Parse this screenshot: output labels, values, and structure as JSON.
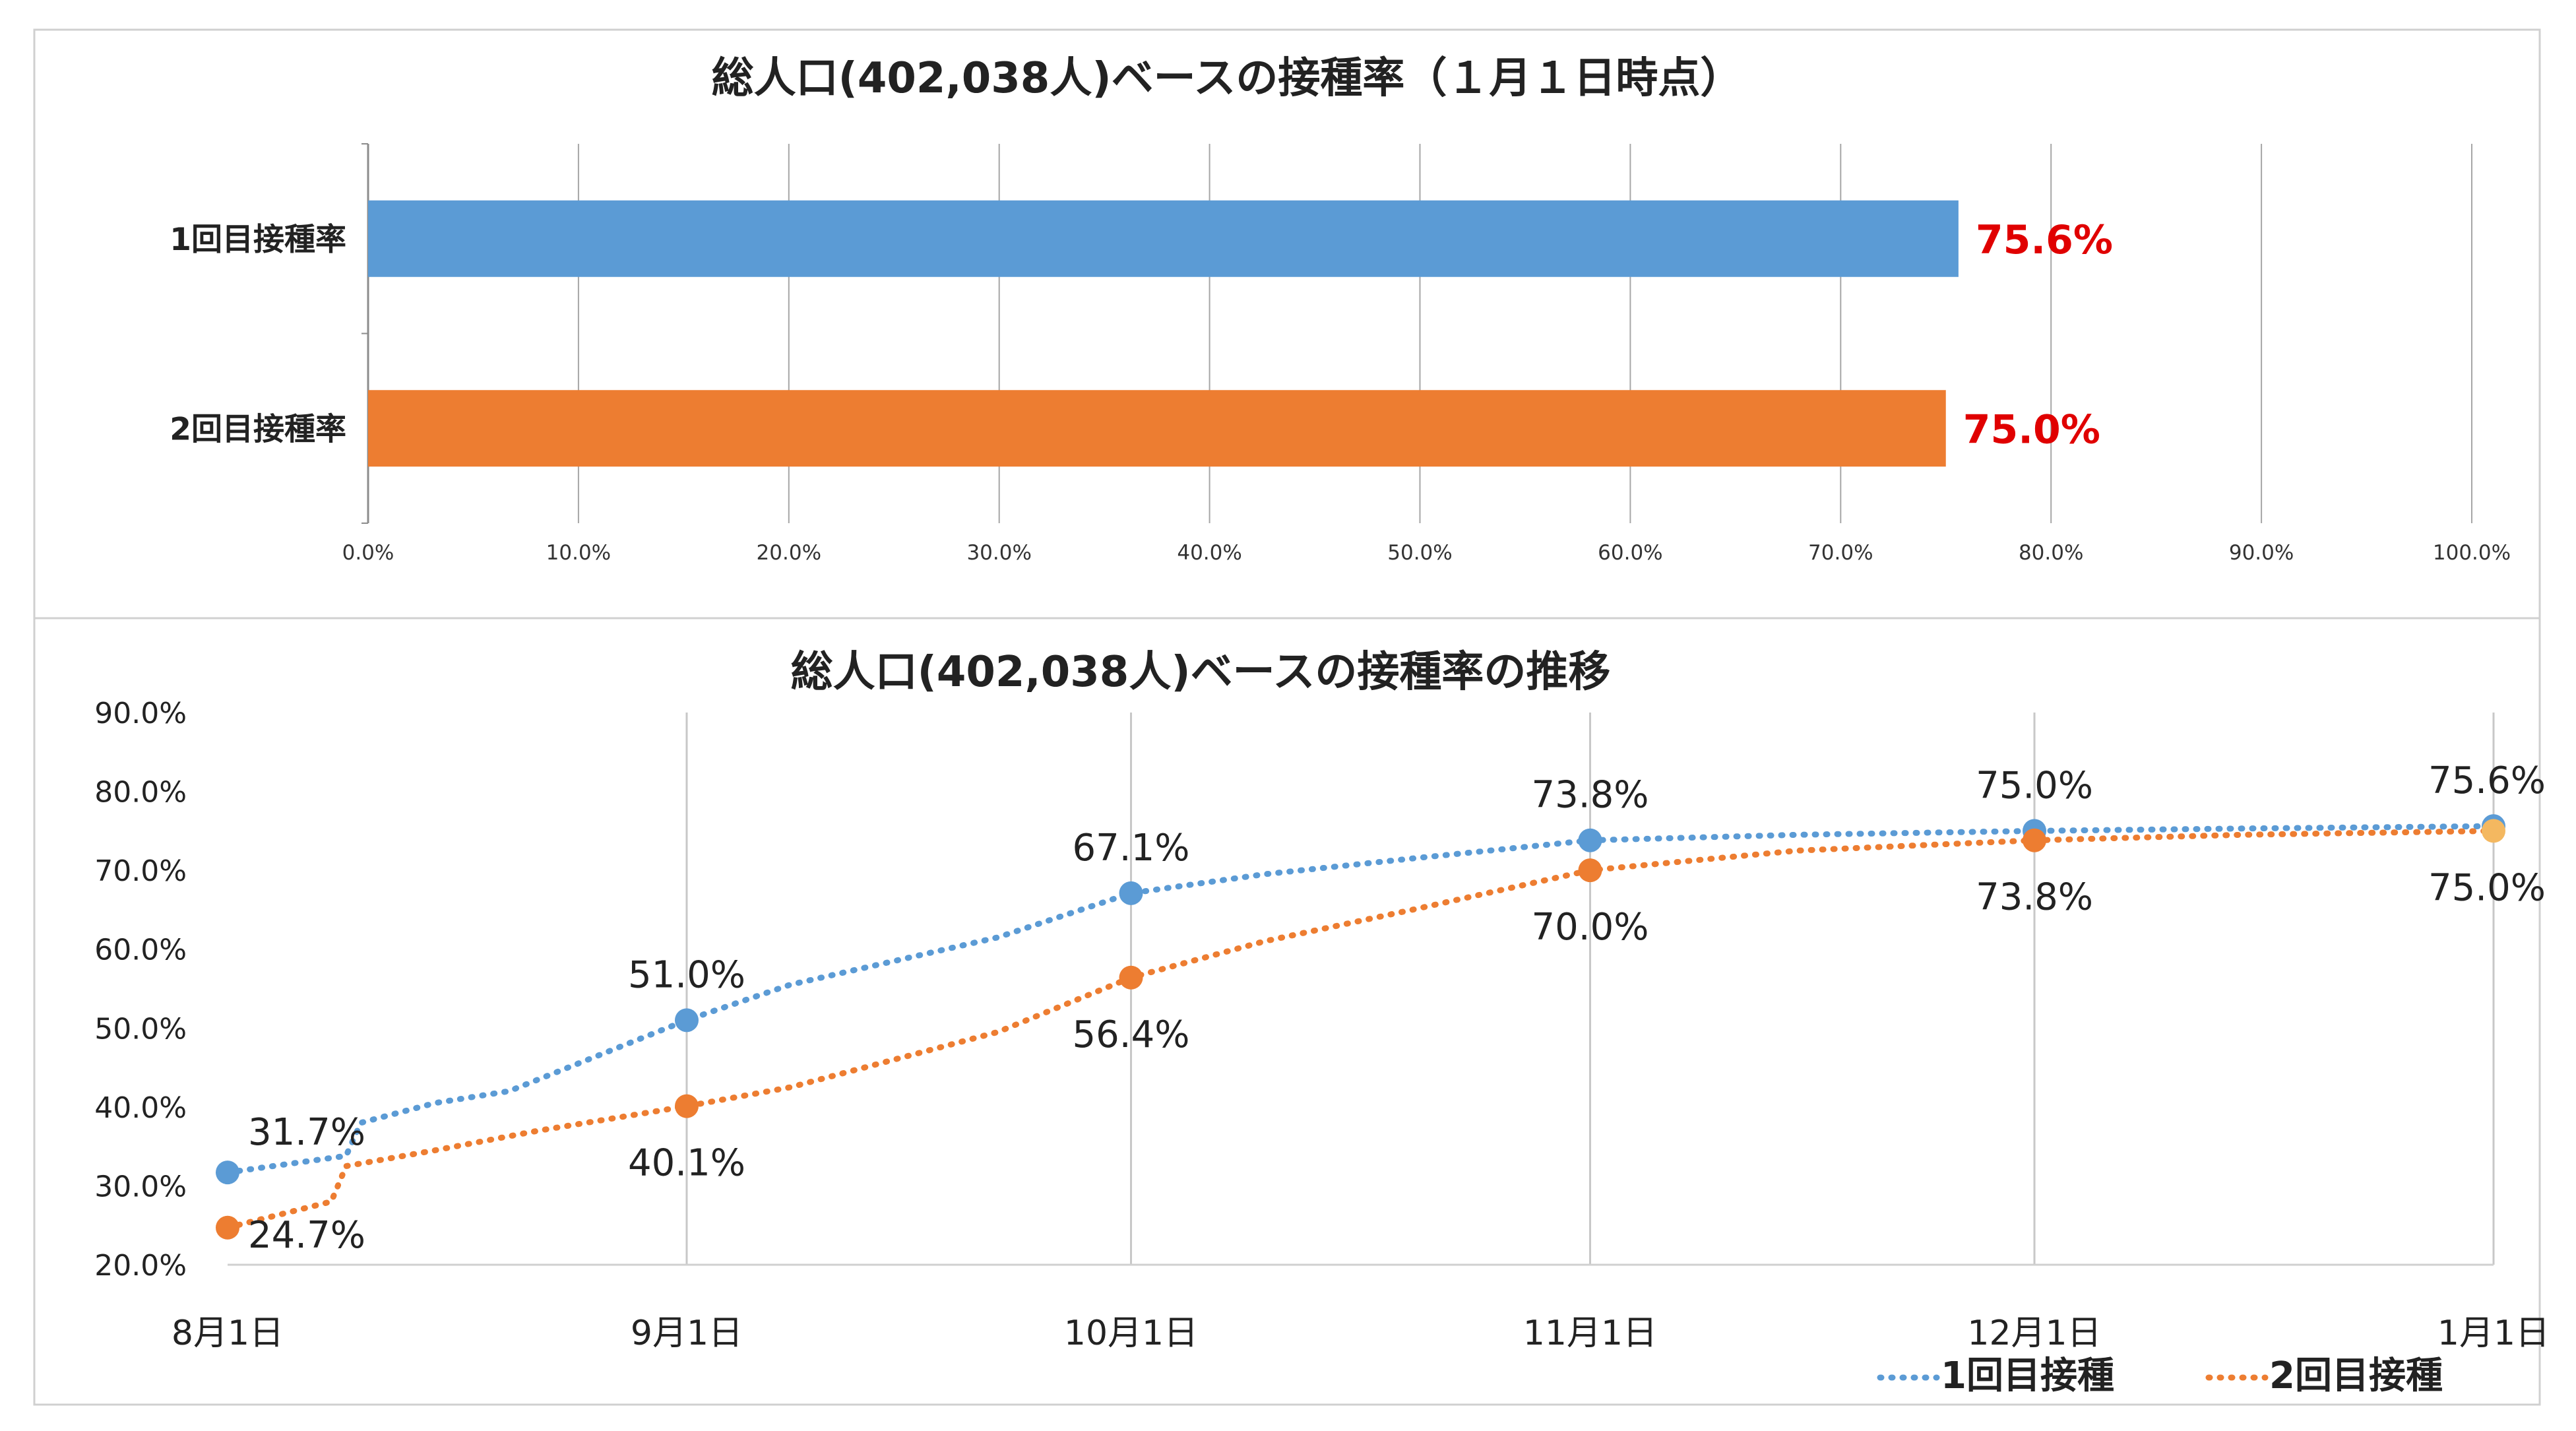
{
  "chart_data": [
    {
      "type": "bar",
      "orientation": "horizontal",
      "title": "総人口(402,038人)ベースの接種率（１月１日時点）",
      "categories": [
        "1回目接種率",
        "2回目接種率"
      ],
      "values": [
        75.6,
        75.0
      ],
      "data_labels": [
        "75.6%",
        "75.0%"
      ],
      "xlim": [
        0,
        100
      ],
      "x_ticks": [
        "0.0%",
        "10.0%",
        "20.0%",
        "30.0%",
        "40.0%",
        "50.0%",
        "60.0%",
        "70.0%",
        "80.0%",
        "90.0%",
        "100.0%"
      ],
      "grid": true,
      "colors": [
        "#5b9bd5",
        "#ed7d31"
      ],
      "label_color": "#e00000"
    },
    {
      "type": "line",
      "title": "総人口(402,038人)ベースの接種率の推移",
      "x_categories": [
        "8月1日",
        "9月1日",
        "10月1日",
        "11月1日",
        "12月1日",
        "1月1日"
      ],
      "ylim": [
        20,
        90
      ],
      "y_ticks": [
        "20.0%",
        "30.0%",
        "40.0%",
        "50.0%",
        "60.0%",
        "70.0%",
        "80.0%",
        "90.0%"
      ],
      "grid": "vertical",
      "legend_position": "bottom-right",
      "series": [
        {
          "name": "1回目接種",
          "color": "#5b9bd5",
          "marker_values": [
            31.7,
            51.0,
            67.1,
            73.8,
            75.0,
            75.6
          ],
          "marker_labels": [
            "31.7%",
            "51.0%",
            "67.1%",
            "73.8%",
            "75.0%",
            "75.6%"
          ],
          "trend": [
            {
              "date": "8月1日",
              "y": 31.7
            },
            {
              "date": "8月9日",
              "y": 33.8
            },
            {
              "date": "8月10日",
              "y": 38.0
            },
            {
              "date": "8月15日",
              "y": 40.5
            },
            {
              "date": "8月20日",
              "y": 42.0
            },
            {
              "date": "9月1日",
              "y": 51.0
            },
            {
              "date": "9月8日",
              "y": 55.5
            },
            {
              "date": "9月15日",
              "y": 58.5
            },
            {
              "date": "9月22日",
              "y": 61.5
            },
            {
              "date": "10月1日",
              "y": 67.1
            },
            {
              "date": "10月10日",
              "y": 69.5
            },
            {
              "date": "10月20日",
              "y": 71.5
            },
            {
              "date": "11月1日",
              "y": 73.8
            },
            {
              "date": "11月15日",
              "y": 74.5
            },
            {
              "date": "12月1日",
              "y": 75.0
            },
            {
              "date": "12月15日",
              "y": 75.3
            },
            {
              "date": "1月1日",
              "y": 75.6
            }
          ]
        },
        {
          "name": "2回目接種",
          "color": "#ed7d31",
          "last_marker_color": "#f4b860",
          "marker_values": [
            24.7,
            40.1,
            56.4,
            70.0,
            73.8,
            75.0
          ],
          "marker_labels": [
            "24.7%",
            "40.1%",
            "56.4%",
            "70.0%",
            "73.8%",
            "75.0%"
          ],
          "trend": [
            {
              "date": "8月1日",
              "y": 24.7
            },
            {
              "date": "8月8日",
              "y": 28.0
            },
            {
              "date": "8月9日",
              "y": 32.5
            },
            {
              "date": "8月15日",
              "y": 34.5
            },
            {
              "date": "8月22日",
              "y": 37.0
            },
            {
              "date": "9月1日",
              "y": 40.1
            },
            {
              "date": "9月8日",
              "y": 42.5
            },
            {
              "date": "9月15日",
              "y": 46.0
            },
            {
              "date": "9月22日",
              "y": 49.5
            },
            {
              "date": "10月1日",
              "y": 56.4
            },
            {
              "date": "10月10日",
              "y": 61.0
            },
            {
              "date": "10月20日",
              "y": 65.0
            },
            {
              "date": "11月1日",
              "y": 70.0
            },
            {
              "date": "11月15日",
              "y": 72.5
            },
            {
              "date": "12月1日",
              "y": 73.8
            },
            {
              "date": "12月15日",
              "y": 74.5
            },
            {
              "date": "1月1日",
              "y": 75.0
            }
          ]
        }
      ]
    }
  ]
}
